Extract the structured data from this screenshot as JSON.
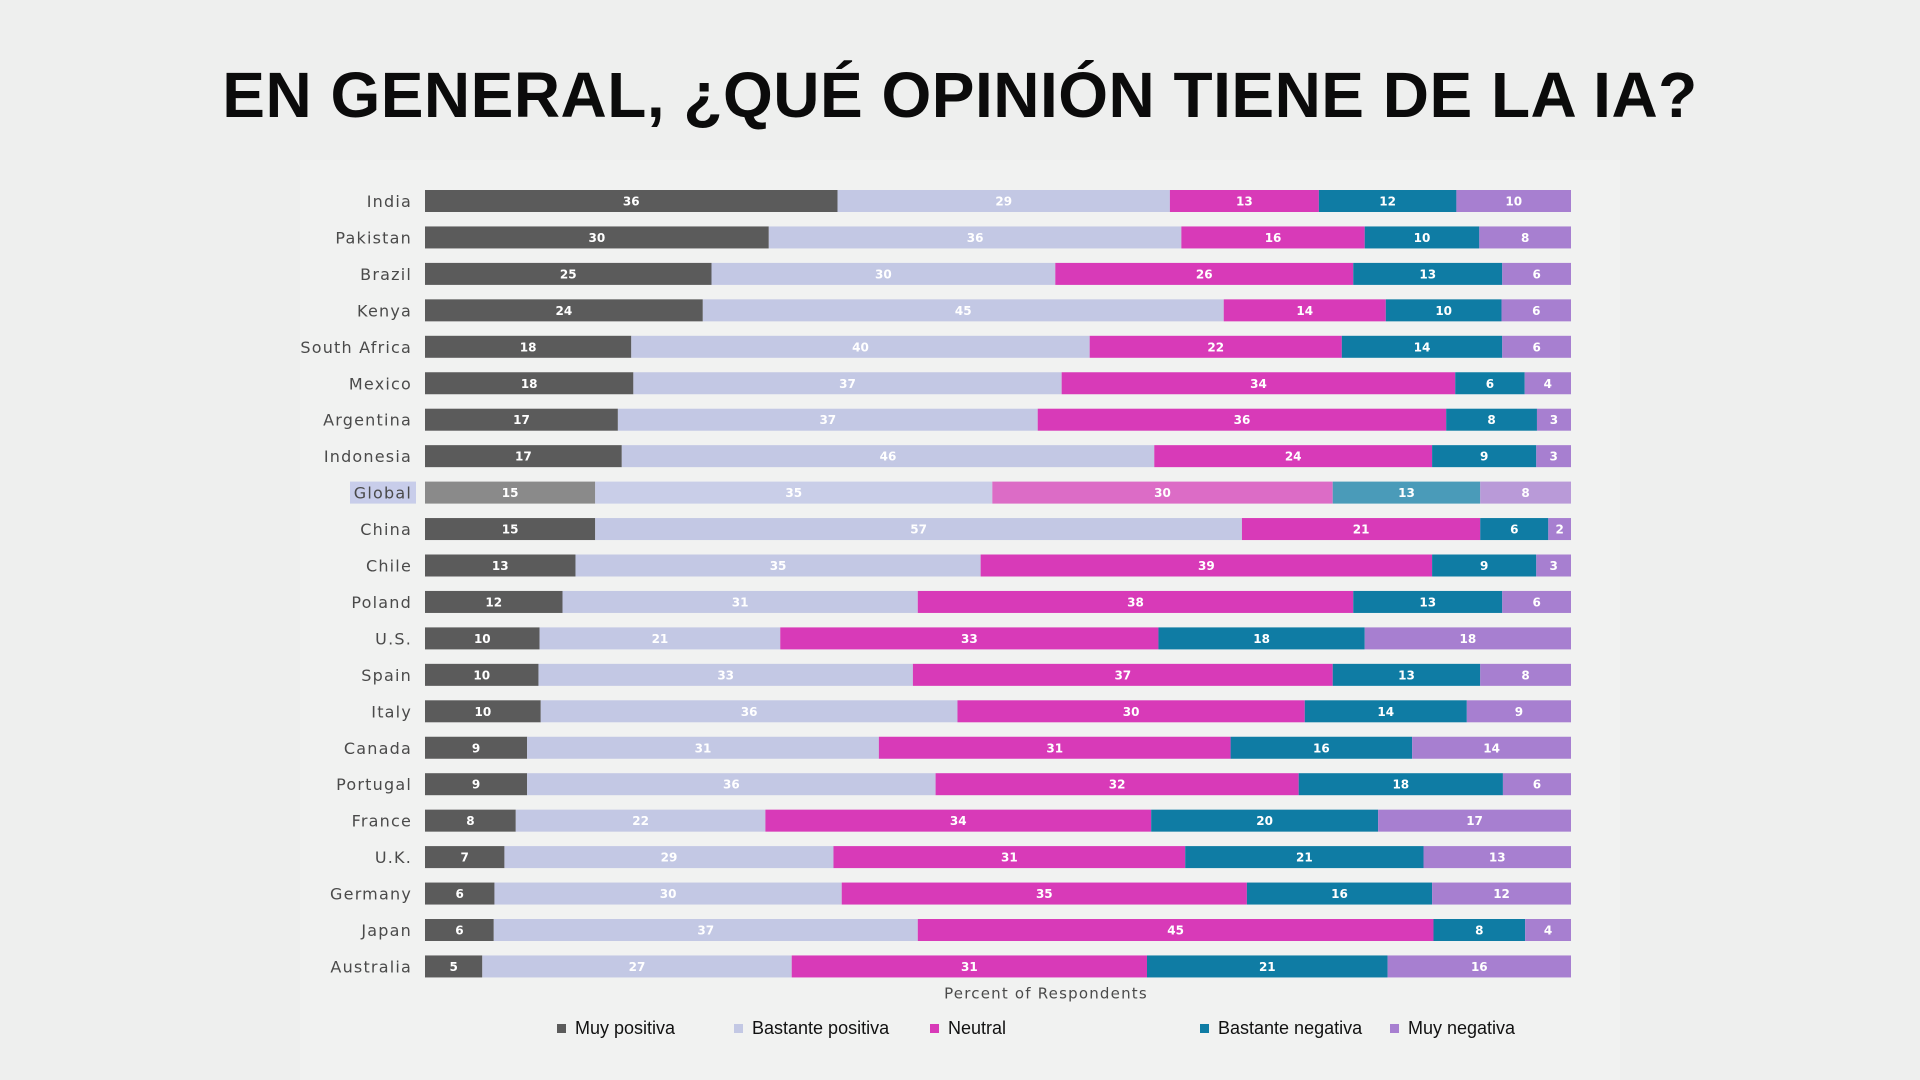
{
  "page": {
    "title": "EN GENERAL, ¿QUÉ OPINIÓN TIENE DE LA IA?"
  },
  "chart_data": {
    "type": "bar",
    "orientation": "horizontal",
    "stacked": true,
    "title": "EN GENERAL, ¿QUÉ OPINIÓN TIENE DE LA IA?",
    "xlabel": "Percent of Respondents",
    "ylabel": "",
    "xlim": [
      0,
      100
    ],
    "highlight_category": "Global",
    "categories": [
      "India",
      "Pakistan",
      "Brazil",
      "Kenya",
      "South Africa",
      "Mexico",
      "Argentina",
      "Indonesia",
      "Global",
      "China",
      "Chile",
      "Poland",
      "U.S.",
      "Spain",
      "Italy",
      "Canada",
      "Portugal",
      "France",
      "U.K.",
      "Germany",
      "Japan",
      "Australia"
    ],
    "series": [
      {
        "name": "Muy positiva",
        "color": "#5b5b5b",
        "highlight_color": "#8a8a8a",
        "label_color": "#ffffff",
        "values": [
          36,
          30,
          25,
          24,
          18,
          18,
          17,
          17,
          15,
          15,
          13,
          12,
          10,
          10,
          10,
          9,
          9,
          8,
          7,
          6,
          6,
          5
        ]
      },
      {
        "name": "Bastante positiva",
        "color": "#c3c8e4",
        "highlight_color": "#c9cee8",
        "label_color": "#ffffff",
        "values": [
          29,
          36,
          30,
          45,
          40,
          37,
          37,
          46,
          35,
          57,
          35,
          31,
          21,
          33,
          36,
          31,
          36,
          22,
          29,
          30,
          37,
          27
        ]
      },
      {
        "name": "Neutral",
        "color": "#d83ab8",
        "highlight_color": "#dc6cc6",
        "label_color": "#ffffff",
        "values": [
          13,
          16,
          26,
          14,
          22,
          34,
          36,
          24,
          30,
          21,
          39,
          38,
          33,
          37,
          30,
          31,
          32,
          34,
          31,
          35,
          45,
          31
        ]
      },
      {
        "name": "Bastante negativa",
        "color": "#0f7ca4",
        "highlight_color": "#4a9bb9",
        "label_color": "#ffffff",
        "values": [
          12,
          10,
          13,
          10,
          14,
          6,
          8,
          9,
          13,
          6,
          9,
          13,
          18,
          13,
          14,
          16,
          18,
          20,
          21,
          16,
          8,
          21
        ]
      },
      {
        "name": "Muy negativa",
        "color": "#a77fd0",
        "highlight_color": "#b99ad8",
        "label_color": "#ffffff",
        "values": [
          10,
          8,
          6,
          6,
          6,
          4,
          3,
          3,
          8,
          2,
          3,
          6,
          18,
          8,
          9,
          14,
          6,
          17,
          13,
          12,
          4,
          16
        ]
      }
    ],
    "legend": {
      "position": "bottom",
      "items": [
        "Muy positiva",
        "Bastante positiva",
        "Neutral",
        "Bastante negativa",
        "Muy negativa"
      ]
    }
  }
}
